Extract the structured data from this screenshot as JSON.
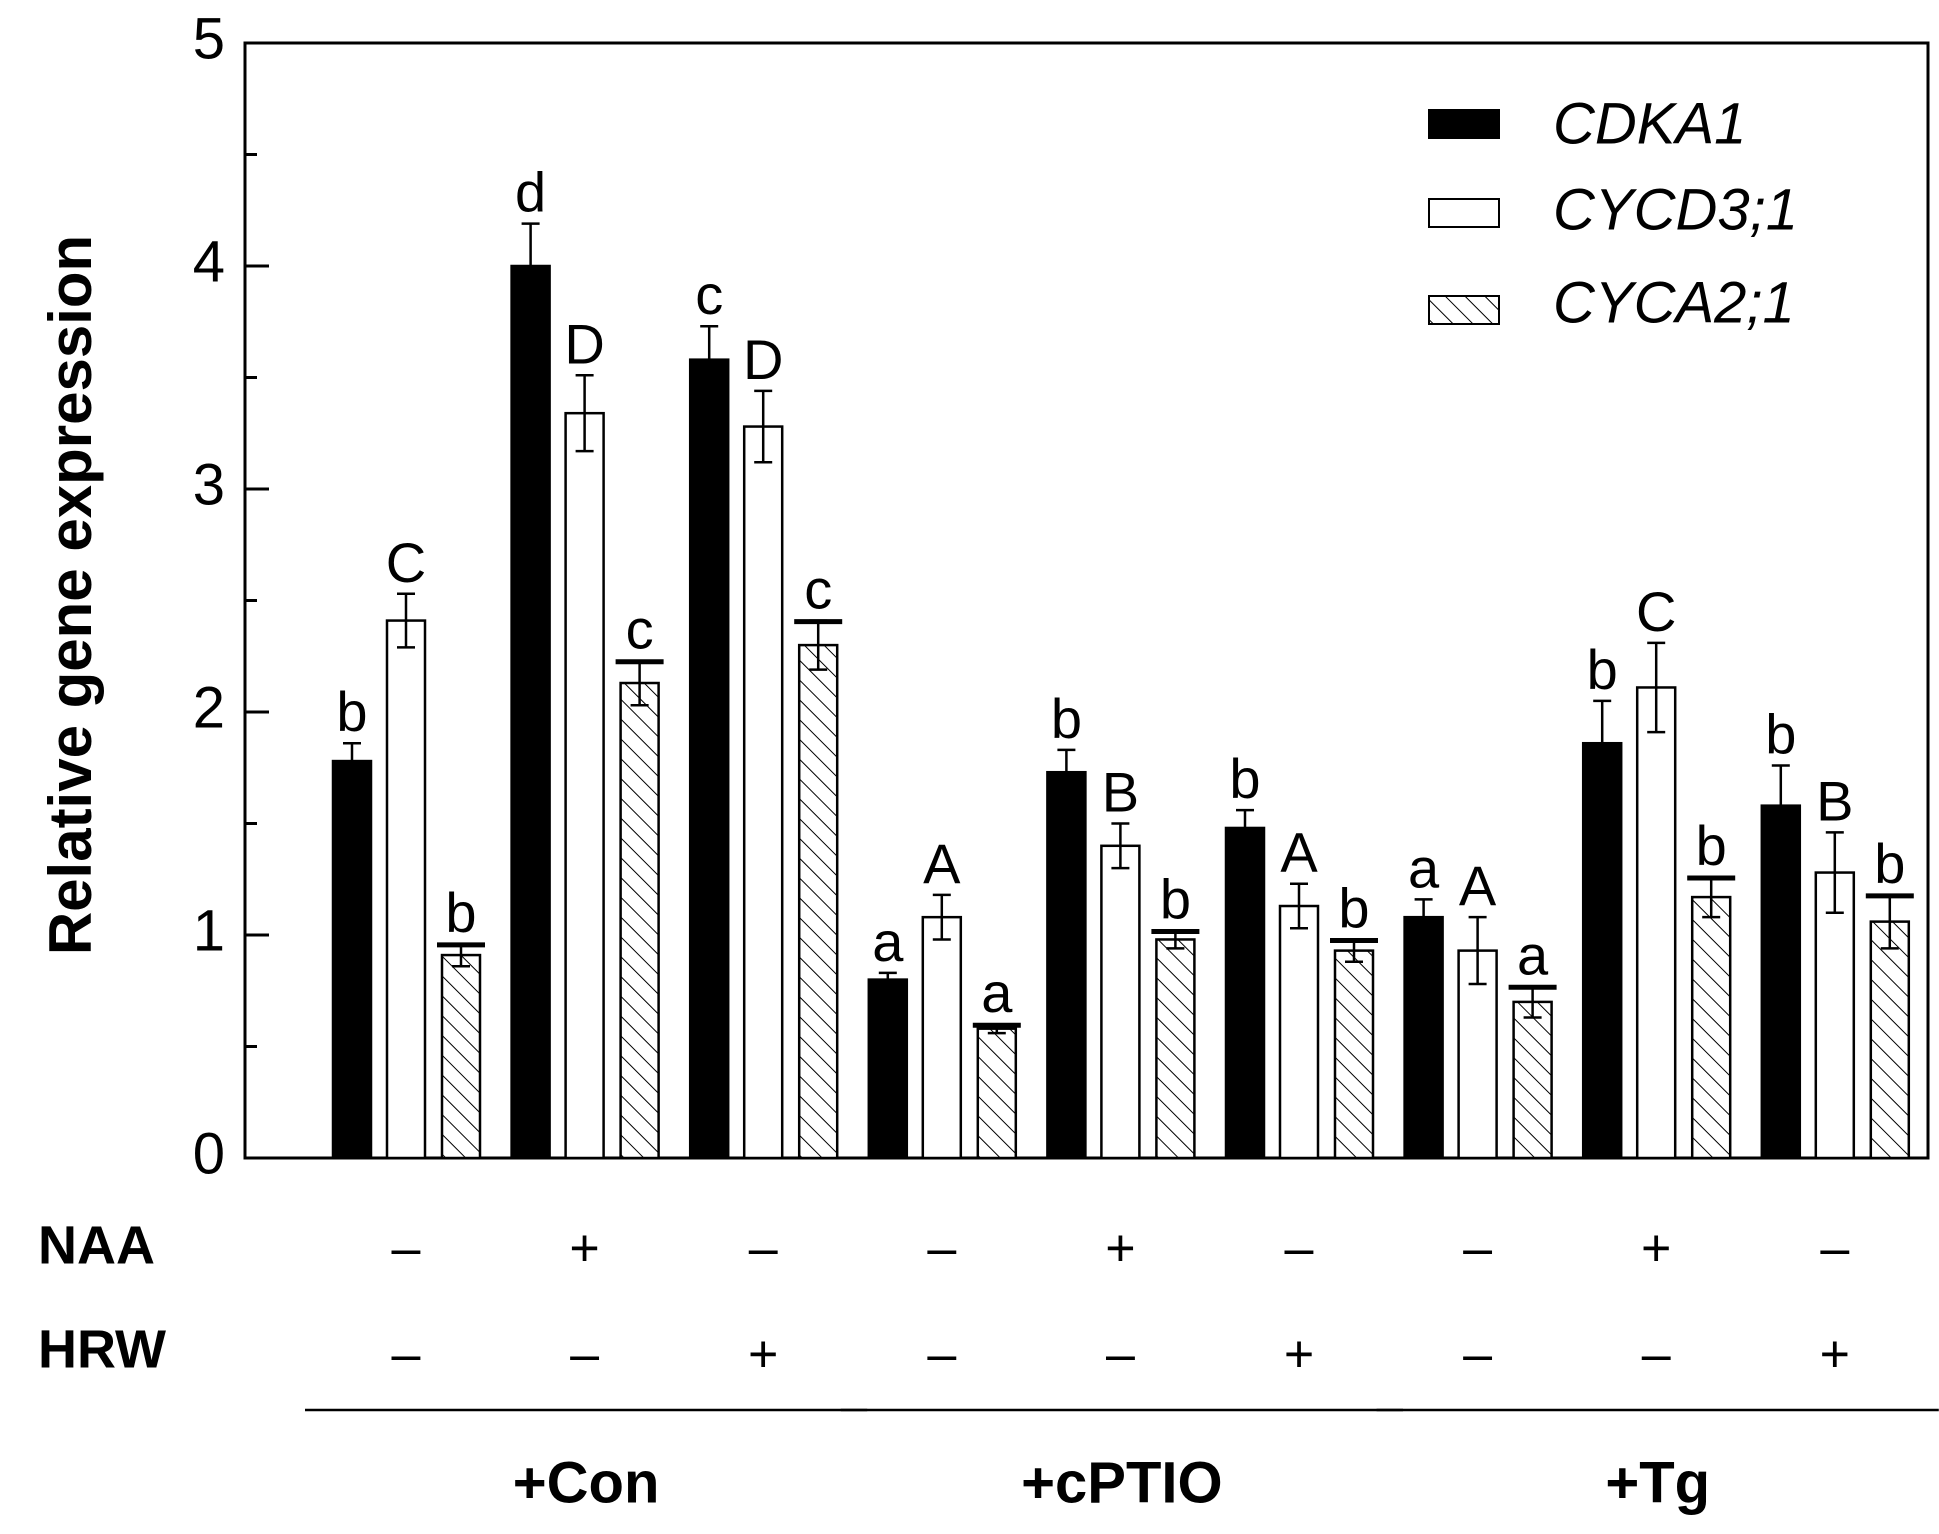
{
  "chart_data": {
    "type": "bar",
    "ylabel": "Relative gene expression",
    "ylim": [
      0,
      5
    ],
    "yticks": [
      "0",
      "1",
      "2",
      "3",
      "4",
      "5"
    ],
    "legend_position": "top-right",
    "row_labels": [
      "NAA",
      "HRW"
    ],
    "categories": [
      {
        "naa": "–",
        "hrw": "–"
      },
      {
        "naa": "+",
        "hrw": "–"
      },
      {
        "naa": "–",
        "hrw": "+"
      },
      {
        "naa": "–",
        "hrw": "–"
      },
      {
        "naa": "+",
        "hrw": "–"
      },
      {
        "naa": "–",
        "hrw": "+"
      },
      {
        "naa": "–",
        "hrw": "–"
      },
      {
        "naa": "+",
        "hrw": "–"
      },
      {
        "naa": "–",
        "hrw": "+"
      }
    ],
    "groups": [
      {
        "label": "+Con",
        "categories": [
          0,
          1,
          2
        ]
      },
      {
        "label": "+cPTIO",
        "categories": [
          3,
          4,
          5
        ]
      },
      {
        "label": "+Tg",
        "categories": [
          6,
          7,
          8
        ]
      }
    ],
    "series": [
      {
        "name": "CDKA1",
        "fill": "solid",
        "values": [
          1.78,
          4.0,
          3.58,
          0.8,
          1.73,
          1.48,
          1.08,
          1.86,
          1.58
        ],
        "errors": [
          0.08,
          0.19,
          0.15,
          0.03,
          0.1,
          0.08,
          0.08,
          0.19,
          0.18
        ],
        "letters": [
          "b",
          "d",
          "c",
          "a",
          "b",
          "b",
          "a",
          "b",
          "b"
        ],
        "underlined": false
      },
      {
        "name": "CYCD3;1",
        "fill": "open",
        "values": [
          2.41,
          3.34,
          3.28,
          1.08,
          1.4,
          1.13,
          0.93,
          2.11,
          1.28
        ],
        "errors": [
          0.12,
          0.17,
          0.16,
          0.1,
          0.1,
          0.1,
          0.15,
          0.2,
          0.18
        ],
        "letters": [
          "C",
          "D",
          "D",
          "A",
          "B",
          "A",
          "A",
          "C",
          "B"
        ],
        "underlined": false
      },
      {
        "name": "CYCA2;1",
        "fill": "hatched",
        "values": [
          0.91,
          2.13,
          2.3,
          0.58,
          0.98,
          0.93,
          0.7,
          1.17,
          1.06
        ],
        "errors": [
          0.05,
          0.1,
          0.11,
          0.02,
          0.04,
          0.05,
          0.07,
          0.09,
          0.12
        ],
        "letters": [
          "b",
          "c",
          "c",
          "a",
          "b",
          "b",
          "a",
          "b",
          "b"
        ],
        "underlined": true
      }
    ]
  }
}
